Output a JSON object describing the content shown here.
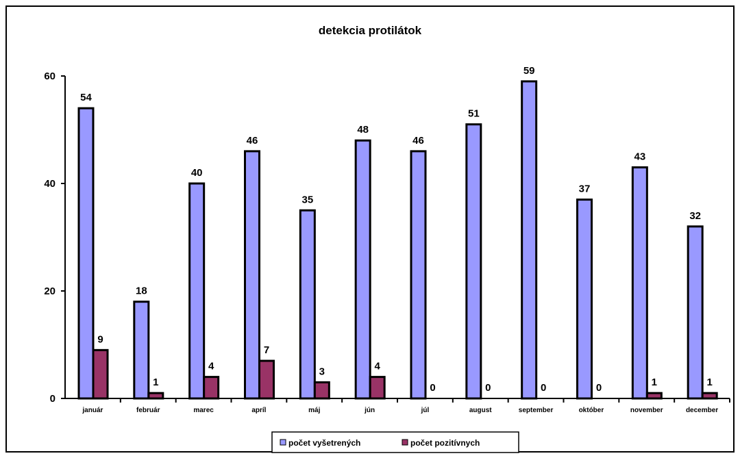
{
  "chart_data": {
    "type": "bar",
    "title": "detekcia protilátok",
    "categories": [
      "január",
      "február",
      "marec",
      "apríl",
      "máj",
      "jún",
      "júl",
      "august",
      "september",
      "október",
      "november",
      "december"
    ],
    "series": [
      {
        "name": "počet vyšetrených",
        "values": [
          54,
          18,
          40,
          46,
          35,
          48,
          46,
          51,
          59,
          37,
          43,
          32
        ],
        "color": "#9999ff"
      },
      {
        "name": "počet pozitívnych",
        "values": [
          9,
          1,
          4,
          7,
          3,
          4,
          0,
          0,
          0,
          0,
          1,
          1
        ],
        "color": "#993366"
      }
    ],
    "y_ticks": [
      0,
      20,
      40,
      60
    ],
    "ylim": [
      0,
      60
    ],
    "grid": false,
    "legend_position": "bottom"
  }
}
